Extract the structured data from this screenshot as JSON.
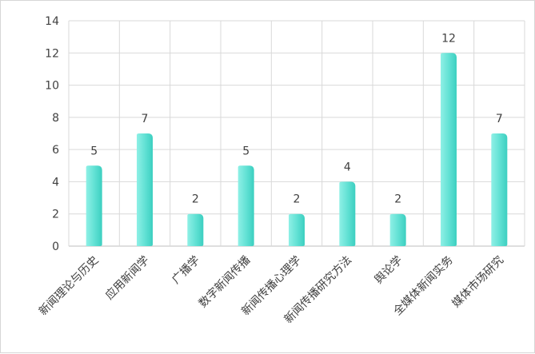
{
  "chart_data": {
    "type": "bar",
    "categories": [
      "新闻理论与历史",
      "应用新闻学",
      "广播学",
      "数字新闻传播",
      "新闻传播心理学",
      "新闻传播研究方法",
      "舆论学",
      "全媒体新闻实务",
      "媒体市场研究"
    ],
    "values": [
      5,
      7,
      2,
      5,
      2,
      4,
      2,
      12,
      7
    ],
    "ylim": [
      0,
      14
    ],
    "yticks": [
      0,
      2,
      4,
      6,
      8,
      10,
      12,
      14
    ],
    "grid": true,
    "legend": "none",
    "title": "",
    "xlabel": "",
    "ylabel": "",
    "colors": {
      "bar_light": "#8ff0e6",
      "bar_mid": "#5fe0d3",
      "bar_dark": "#3ccfc0",
      "grid": "#d9d9d9",
      "axis": "#bfbfbf",
      "text": "#404040"
    }
  }
}
